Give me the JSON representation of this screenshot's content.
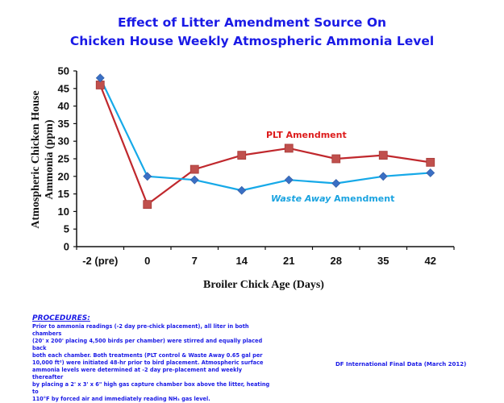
{
  "chart_data": {
    "type": "line",
    "title": "Effect of Litter Amendment Source On Chicken House Weekly Atmospheric Ammonia Level",
    "title_lines": [
      "Effect of Litter Amendment Source On",
      "Chicken House Weekly Atmospheric Ammonia Level"
    ],
    "xlabel": "Broiler Chick Age (Days)",
    "ylabel_lines": [
      "Atmospheric Chicken House",
      "Ammonia (ppm)"
    ],
    "categories": [
      "-2 (pre)",
      "0",
      "7",
      "14",
      "21",
      "28",
      "35",
      "42"
    ],
    "ylim": [
      0,
      50
    ],
    "yticks": [
      0,
      5,
      10,
      15,
      20,
      25,
      30,
      35,
      40,
      45,
      50
    ],
    "grid": false,
    "series": [
      {
        "name": "PLT Amendment",
        "label_parts": [
          "PLT Amendment"
        ],
        "color": "#c0282d",
        "marker_color": "#c0504d",
        "marker": "square",
        "values": [
          46,
          12,
          22,
          26,
          28,
          25,
          26,
          24
        ]
      },
      {
        "name": "Waste Away Amendment",
        "label_parts": [
          "Waste Away",
          " Amendment"
        ],
        "color": "#16a9e8",
        "marker_color": "#3a6fc4",
        "marker": "diamond",
        "values": [
          48,
          20,
          19,
          16,
          19,
          18,
          20,
          21
        ]
      }
    ],
    "annotations": [
      "PLT Amendment",
      "Waste Away Amendment"
    ]
  },
  "procedures": {
    "heading": "PROCEDURES:",
    "lines": [
      "Prior to ammonia readings (-2 day pre-chick placement), all liter in both chambers",
      "(20' x 200' placing 4,500 birds per chamber) were stirred and equally placed back",
      "both each chamber. Both treatments (PLT control & Waste Away 0.65 gal per",
      "10,000 ft²) were initiated 48-hr prior to bird placement. Atmospheric surface",
      "ammonia levels were determined at -2 day pre-placement and weekly thereafter",
      "by placing a 2' x 3' x 6\" high gas capture chamber box above the litter, heating to",
      "110°F by forced air and immediately reading NH₃ gas level."
    ]
  },
  "source": "DF International Final Data (March 2012)"
}
